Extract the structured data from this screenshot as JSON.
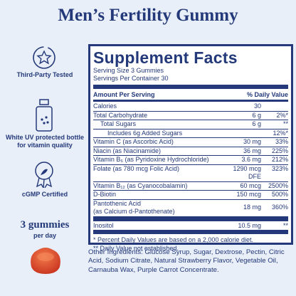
{
  "header": {
    "title": "Men’s Fertility Gummy"
  },
  "badges": [
    {
      "label": "Third-Party Tested"
    },
    {
      "label": "White UV protected bottle for vitamin quality"
    },
    {
      "label": "cGMP Certified"
    }
  ],
  "dosage": {
    "amount": "3 gummies",
    "unit": "per day"
  },
  "facts": {
    "title": "Supplement Facts",
    "serving_size": "Serving Size 3 Gummies",
    "servings": "Servings Per Container 30",
    "column_headers": [
      "Amount Per Serving",
      "% Daily Value"
    ],
    "rows": [
      {
        "name": "Calories",
        "amount": "30"
      },
      {
        "name": "Total Carbohydrate",
        "amount": "6 g",
        "dv": "2%*"
      },
      {
        "name": "Total Sugars",
        "amount": "6 g",
        "dv": "**",
        "indent": 1
      },
      {
        "name": "Includes 6g Added Sugars",
        "dv": "12%*",
        "indent": 2
      },
      {
        "name": "Vitamin C (as Ascorbic Acid)",
        "amount": "30 mg",
        "dv": "33%"
      },
      {
        "name": "Niacin (as Niacinamide)",
        "amount": "36 mg",
        "dv": "225%"
      },
      {
        "name": "Vitamin B₆ (as Pyridoxine Hydrochloride)",
        "amount": "3.6 mg",
        "dv": "212%"
      },
      {
        "name": "Folate (as 780 mcg Folic Acid)",
        "amount": "1290 mcg DFE",
        "dv": "323%"
      },
      {
        "name": "Vitamin B₁₂ (as Cyanocobalamin)",
        "amount": "60 mcg",
        "dv": "2500%"
      },
      {
        "name": "D-Biotin",
        "amount": "150 mcg",
        "dv": "500%"
      },
      {
        "name": "Pantothenic Acid",
        "detail": "(as Calcium d-Pantothenate)",
        "amount": "18 mg",
        "dv": "360%"
      },
      {
        "name": "Inositol",
        "amount": "10.5 mg",
        "dv": "**",
        "thick_before": true
      }
    ],
    "footnotes": [
      "* Percent Daily Values are based on a 2,000 calorie diet.",
      "** Daily Value not established."
    ],
    "other_ingredients": "Other Ingredients: Glucose Syrup, Sugar, Dextrose, Pectin, Citric Acid, Sodium Citrate, Natural Strawberry Flavor, Vegetable Oil, Carnauba Wax, Purple Carrot Concentrate."
  }
}
